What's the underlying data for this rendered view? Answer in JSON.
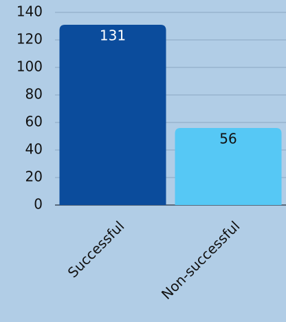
{
  "chart_data": {
    "type": "bar",
    "categories": [
      "Successful",
      "Non-successful"
    ],
    "values": [
      131,
      56
    ],
    "colors": [
      "#0b4c9c",
      "#56c8f5"
    ],
    "ylim": [
      0,
      140
    ],
    "yticks": [
      0,
      20,
      40,
      60,
      80,
      100,
      120,
      140
    ],
    "grid": true
  }
}
